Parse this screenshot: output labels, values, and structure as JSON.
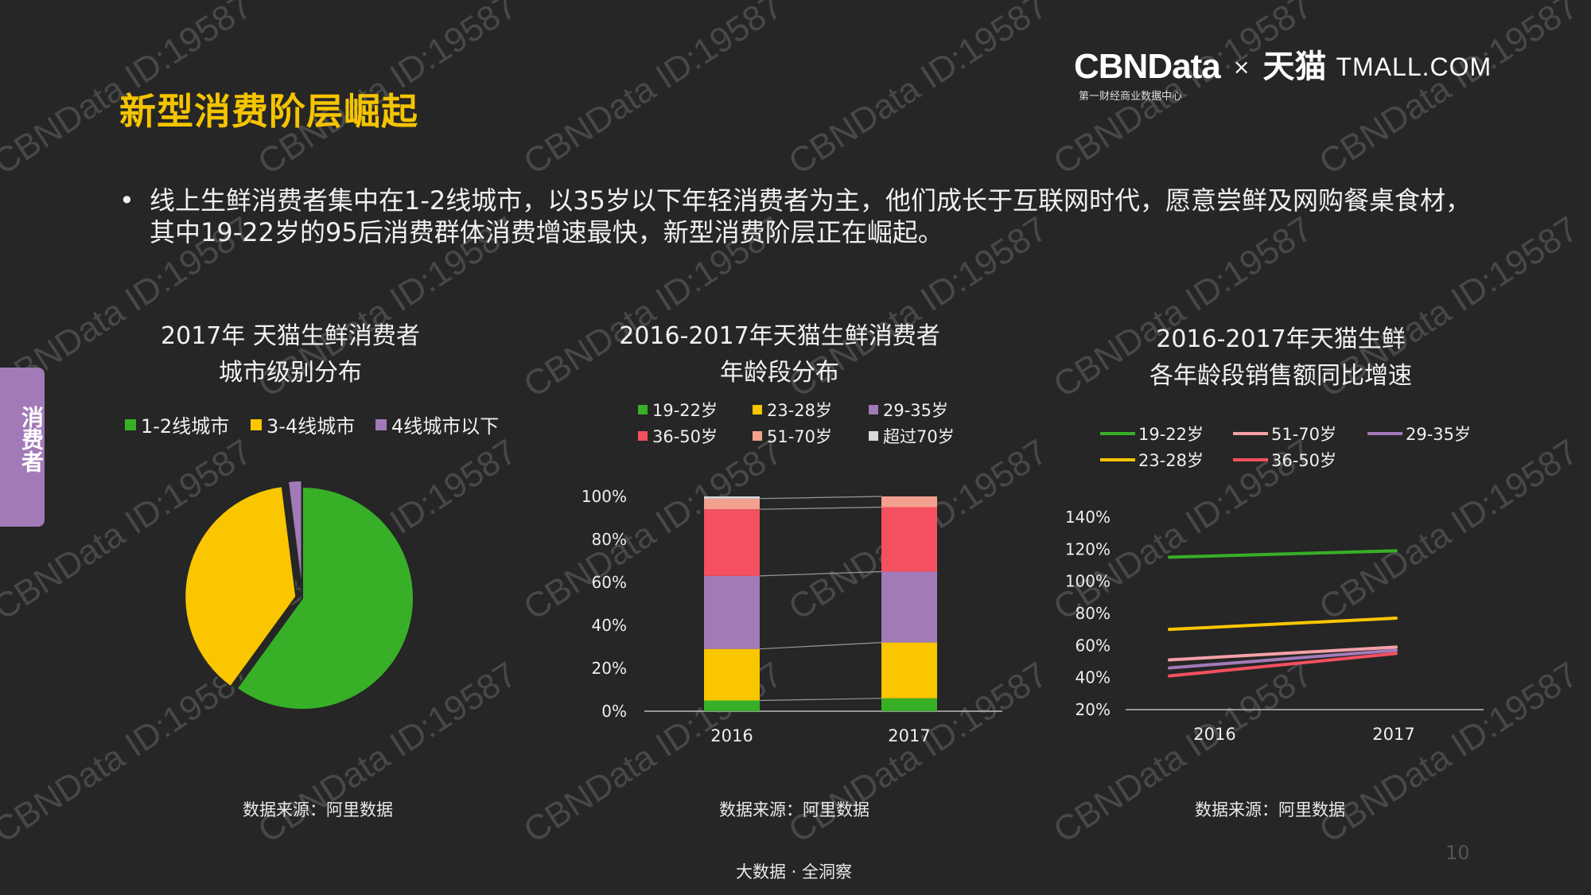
{
  "page": {
    "title": "新型消费阶层崛起",
    "bullet": "线上生鲜消费者集中在1-2线城市，以35岁以下年轻消费者为主，他们成长于互联网时代，愿意尝鲜及网购餐桌食材，其中19-22岁的95后消费群体消费增速最快，新型消费阶层正在崛起。",
    "side_tab": "消费者",
    "footer": "大数据 · 全洞察",
    "page_number": "10",
    "watermark": "CBNData ID:19587"
  },
  "logo": {
    "cbn": "CBNData",
    "cbn_sub": "第一财经商业数据中心",
    "x": "×",
    "tmall_cn": "天猫",
    "tmall_en": "TMALL.COM"
  },
  "chart_data": [
    {
      "type": "pie",
      "title": "2017年 天猫生鲜消费者",
      "subtitle": "城市级别分布",
      "labels": [
        "1-2线城市",
        "3-4线城市",
        "4线城市以下"
      ],
      "values": [
        60,
        38,
        2
      ],
      "colors": [
        "#37b027",
        "#f9c600",
        "#a37ab8"
      ],
      "source": "数据来源：阿里数据"
    },
    {
      "type": "bar",
      "stacked": true,
      "title": "2016-2017年天猫生鲜消费者",
      "subtitle": "年龄段分布",
      "categories": [
        "2016",
        "2017"
      ],
      "series": [
        {
          "name": "19-22岁",
          "color": "#37b027",
          "values": [
            5,
            6
          ]
        },
        {
          "name": "23-28岁",
          "color": "#f9c600",
          "values": [
            24,
            26
          ]
        },
        {
          "name": "29-35岁",
          "color": "#a37ab8",
          "values": [
            34,
            33
          ]
        },
        {
          "name": "36-50岁",
          "color": "#f5505f",
          "values": [
            31,
            30
          ]
        },
        {
          "name": "51-70岁",
          "color": "#f4a08e",
          "values": [
            5,
            5
          ]
        },
        {
          "name": "超过70岁",
          "color": "#d9d9d9",
          "values": [
            1,
            0
          ]
        }
      ],
      "ylim": [
        0,
        100
      ],
      "yticks": [
        "0%",
        "20%",
        "40%",
        "60%",
        "80%",
        "100%"
      ],
      "source": "数据来源：阿里数据"
    },
    {
      "type": "line",
      "title": "2016-2017年天猫生鲜",
      "subtitle": "各年龄段销售额同比增速",
      "x": [
        "2016",
        "2017"
      ],
      "series": [
        {
          "name": "19-22岁",
          "color": "#37b027",
          "values": [
            115,
            119
          ]
        },
        {
          "name": "51-70岁",
          "color": "#f4a0a8",
          "values": [
            51,
            59
          ]
        },
        {
          "name": "29-35岁",
          "color": "#a37ab8",
          "values": [
            46,
            57
          ]
        },
        {
          "name": "23-28岁",
          "color": "#f9c600",
          "values": [
            70,
            77
          ]
        },
        {
          "name": "36-50岁",
          "color": "#f5505f",
          "values": [
            41,
            55
          ]
        }
      ],
      "ylim": [
        20,
        140
      ],
      "yticks": [
        "20%",
        "40%",
        "60%",
        "80%",
        "100%",
        "120%",
        "140%"
      ],
      "source": "数据来源：阿里数据"
    }
  ]
}
